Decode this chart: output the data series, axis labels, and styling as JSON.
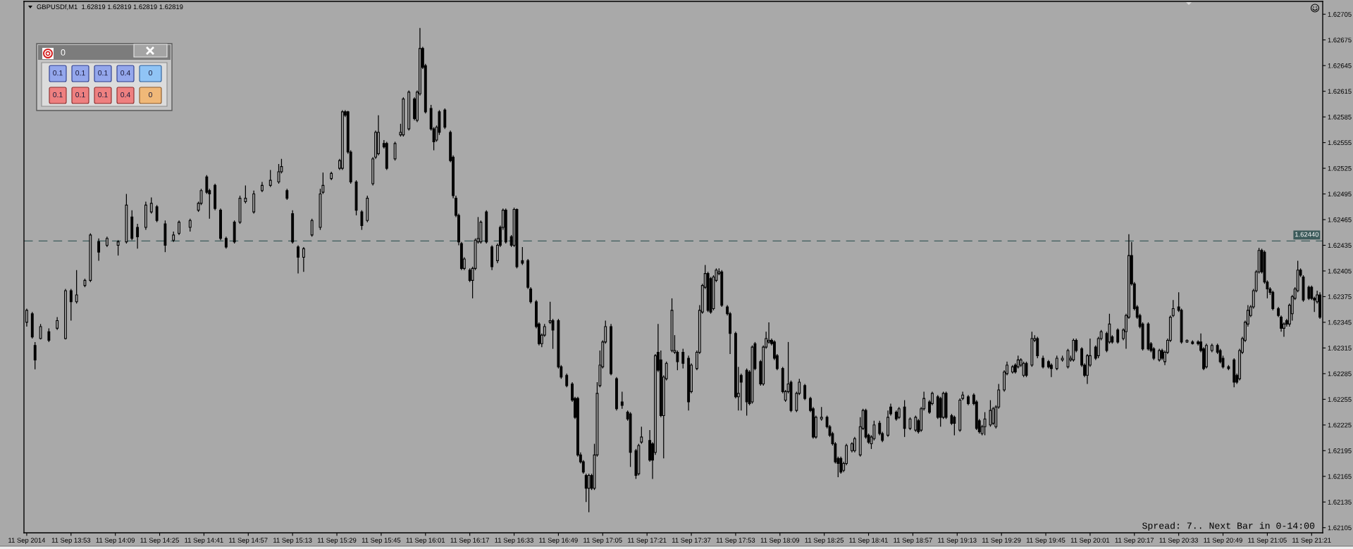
{
  "chart_data": {
    "type": "candlestick",
    "title": "GBPUSDf,M1  1.62819 1.62819 1.62819 1.62819",
    "color": "#000000",
    "x": [
      "2014-09-11T13:37",
      "2014-09-11T13:39",
      "2014-09-11T13:40",
      "2014-09-11T13:42",
      "2014-09-11T13:45",
      "2014-09-11T13:48",
      "2014-09-11T13:51",
      "2014-09-11T13:53",
      "2014-09-11T13:55",
      "2014-09-11T13:58",
      "2014-09-11T14:00",
      "2014-09-11T14:03",
      "2014-09-11T14:06",
      "2014-09-11T14:10",
      "2014-09-11T14:13",
      "2014-09-11T14:15",
      "2014-09-11T14:17",
      "2014-09-11T14:20",
      "2014-09-11T14:22",
      "2014-09-11T14:24",
      "2014-09-11T14:27",
      "2014-09-11T14:30",
      "2014-09-11T14:32",
      "2014-09-11T14:36",
      "2014-09-11T14:39",
      "2014-09-11T14:40",
      "2014-09-11T14:42",
      "2014-09-11T14:43",
      "2014-09-11T14:45",
      "2014-09-11T14:47",
      "2014-09-11T14:49",
      "2014-09-11T14:52",
      "2014-09-11T14:54",
      "2014-09-11T14:56",
      "2014-09-11T14:59",
      "2014-09-11T15:02",
      "2014-09-11T15:05",
      "2014-09-11T15:08",
      "2014-09-11T15:09",
      "2014-09-11T15:11",
      "2014-09-11T15:13",
      "2014-09-11T15:15",
      "2014-09-11T15:17",
      "2014-09-11T15:20",
      "2014-09-11T15:23",
      "2014-09-11T15:24",
      "2014-09-11T15:27",
      "2014-09-11T15:30",
      "2014-09-11T15:31",
      "2014-09-11T15:32",
      "2014-09-11T15:33",
      "2014-09-11T15:34",
      "2014-09-11T15:36",
      "2014-09-11T15:38",
      "2014-09-11T15:40",
      "2014-09-11T15:42",
      "2014-09-11T15:43",
      "2014-09-11T15:44",
      "2014-09-11T15:46",
      "2014-09-11T15:47",
      "2014-09-11T15:50",
      "2014-09-11T15:52",
      "2014-09-11T15:53",
      "2014-09-11T15:55",
      "2014-09-11T15:57",
      "2014-09-11T15:58",
      "2014-09-11T15:59",
      "2014-09-11T16:00",
      "2014-09-11T16:01",
      "2014-09-11T16:03",
      "2014-09-11T16:04",
      "2014-09-11T16:05",
      "2014-09-11T16:06",
      "2014-09-11T16:08",
      "2014-09-11T16:10",
      "2014-09-11T16:11",
      "2014-09-11T16:12",
      "2014-09-11T16:13",
      "2014-09-11T16:14",
      "2014-09-11T16:15",
      "2014-09-11T16:17",
      "2014-09-11T16:18",
      "2014-09-11T16:19",
      "2014-09-11T16:20",
      "2014-09-11T16:21",
      "2014-09-11T16:23",
      "2014-09-11T16:25",
      "2014-09-11T16:27",
      "2014-09-11T16:28",
      "2014-09-11T16:29",
      "2014-09-11T16:30",
      "2014-09-11T16:32",
      "2014-09-11T16:33",
      "2014-09-11T16:34",
      "2014-09-11T16:36",
      "2014-09-11T16:38",
      "2014-09-11T16:39",
      "2014-09-11T16:41",
      "2014-09-11T16:42",
      "2014-09-11T16:43",
      "2014-09-11T16:44",
      "2014-09-11T16:46",
      "2014-09-11T16:47",
      "2014-09-11T16:49",
      "2014-09-11T16:50",
      "2014-09-11T16:52",
      "2014-09-11T16:54",
      "2014-09-11T16:55",
      "2014-09-11T16:56",
      "2014-09-11T16:57",
      "2014-09-11T16:58",
      "2014-09-11T16:59",
      "2014-09-11T17:00",
      "2014-09-11T17:01",
      "2014-09-11T17:02",
      "2014-09-11T17:03",
      "2014-09-11T17:04",
      "2014-09-11T17:05",
      "2014-09-11T17:06",
      "2014-09-11T17:08",
      "2014-09-11T17:10",
      "2014-09-11T17:12",
      "2014-09-11T17:14",
      "2014-09-11T17:15",
      "2014-09-11T17:17",
      "2014-09-11T17:18",
      "2014-09-11T17:19",
      "2014-09-11T17:22",
      "2014-09-11T17:23",
      "2014-09-11T17:24",
      "2014-09-11T17:25",
      "2014-09-11T17:26",
      "2014-09-11T17:27",
      "2014-09-11T17:28",
      "2014-09-11T17:30",
      "2014-09-11T17:31",
      "2014-09-11T17:32",
      "2014-09-11T17:34",
      "2014-09-11T17:36",
      "2014-09-11T17:37",
      "2014-09-11T17:39",
      "2014-09-11T17:40",
      "2014-09-11T17:41",
      "2014-09-11T17:42",
      "2014-09-11T17:43",
      "2014-09-11T17:44",
      "2014-09-11T17:45",
      "2014-09-11T17:46",
      "2014-09-11T17:47",
      "2014-09-11T17:48",
      "2014-09-11T17:50",
      "2014-09-11T17:51",
      "2014-09-11T17:53",
      "2014-09-11T17:54",
      "2014-09-11T17:55",
      "2014-09-11T17:57",
      "2014-09-11T17:58",
      "2014-09-11T17:59",
      "2014-09-11T18:00",
      "2014-09-11T18:02",
      "2014-09-11T18:03",
      "2014-09-11T18:04",
      "2014-09-11T18:05",
      "2014-09-11T18:06",
      "2014-09-11T18:07",
      "2014-09-11T18:08",
      "2014-09-11T18:10",
      "2014-09-11T18:11",
      "2014-09-11T18:12",
      "2014-09-11T18:13",
      "2014-09-11T18:15",
      "2014-09-11T18:16",
      "2014-09-11T18:18",
      "2014-09-11T18:20",
      "2014-09-11T18:21",
      "2014-09-11T18:22",
      "2014-09-11T18:24",
      "2014-09-11T18:26",
      "2014-09-11T18:27",
      "2014-09-11T18:28",
      "2014-09-11T18:29",
      "2014-09-11T18:30",
      "2014-09-11T18:31",
      "2014-09-11T18:32",
      "2014-09-11T18:33",
      "2014-09-11T18:35",
      "2014-09-11T18:36",
      "2014-09-11T18:38",
      "2014-09-11T18:39",
      "2014-09-11T18:40",
      "2014-09-11T18:41",
      "2014-09-11T18:42",
      "2014-09-11T18:43",
      "2014-09-11T18:45",
      "2014-09-11T18:46",
      "2014-09-11T18:48",
      "2014-09-11T18:49",
      "2014-09-11T18:51",
      "2014-09-11T18:52",
      "2014-09-11T18:54",
      "2014-09-11T18:56",
      "2014-09-11T18:58",
      "2014-09-11T18:59",
      "2014-09-11T19:00",
      "2014-09-11T19:01",
      "2014-09-11T19:03",
      "2014-09-11T19:04",
      "2014-09-11T19:06",
      "2014-09-11T19:07",
      "2014-09-11T19:08",
      "2014-09-11T19:09",
      "2014-09-11T19:11",
      "2014-09-11T19:12",
      "2014-09-11T19:14",
      "2014-09-11T19:15",
      "2014-09-11T19:17",
      "2014-09-11T19:19",
      "2014-09-11T19:20",
      "2014-09-11T19:21",
      "2014-09-11T19:22",
      "2014-09-11T19:23",
      "2014-09-11T19:25",
      "2014-09-11T19:26",
      "2014-09-11T19:27",
      "2014-09-11T19:28",
      "2014-09-11T19:30",
      "2014-09-11T19:31",
      "2014-09-11T19:33",
      "2014-09-11T19:34",
      "2014-09-11T19:35",
      "2014-09-11T19:36",
      "2014-09-11T19:37",
      "2014-09-11T19:38",
      "2014-09-11T19:40",
      "2014-09-11T19:41",
      "2014-09-11T19:42",
      "2014-09-11T19:44",
      "2014-09-11T19:46",
      "2014-09-11T19:47",
      "2014-09-11T19:49",
      "2014-09-11T19:51",
      "2014-09-11T19:53",
      "2014-09-11T19:54",
      "2014-09-11T19:55",
      "2014-09-11T19:56",
      "2014-09-11T19:58",
      "2014-09-11T19:59",
      "2014-09-11T20:00",
      "2014-09-11T20:01",
      "2014-09-11T20:03",
      "2014-09-11T20:04",
      "2014-09-11T20:05",
      "2014-09-11T20:07",
      "2014-09-11T20:08",
      "2014-09-11T20:09",
      "2014-09-11T20:11",
      "2014-09-11T20:13",
      "2014-09-11T20:14",
      "2014-09-11T20:15",
      "2014-09-11T20:16",
      "2014-09-11T20:17",
      "2014-09-11T20:18",
      "2014-09-11T20:19",
      "2014-09-11T20:20",
      "2014-09-11T20:22",
      "2014-09-11T20:23",
      "2014-09-11T20:24",
      "2014-09-11T20:26",
      "2014-09-11T20:27",
      "2014-09-11T20:28",
      "2014-09-11T20:29",
      "2014-09-11T20:30",
      "2014-09-11T20:31",
      "2014-09-11T20:33",
      "2014-09-11T20:34",
      "2014-09-11T20:36",
      "2014-09-11T20:38",
      "2014-09-11T20:40",
      "2014-09-11T20:41",
      "2014-09-11T20:42",
      "2014-09-11T20:43",
      "2014-09-11T20:45",
      "2014-09-11T20:47",
      "2014-09-11T20:48",
      "2014-09-11T20:49",
      "2014-09-11T20:51",
      "2014-09-11T20:53",
      "2014-09-11T20:54",
      "2014-09-11T20:55",
      "2014-09-11T20:56",
      "2014-09-11T20:57",
      "2014-09-11T20:58",
      "2014-09-11T20:59",
      "2014-09-11T21:00",
      "2014-09-11T21:01",
      "2014-09-11T21:02",
      "2014-09-11T21:03",
      "2014-09-11T21:04",
      "2014-09-11T21:05",
      "2014-09-11T21:06",
      "2014-09-11T21:07",
      "2014-09-11T21:09",
      "2014-09-11T21:10",
      "2014-09-11T21:11",
      "2014-09-11T21:12",
      "2014-09-11T21:13",
      "2014-09-11T21:14",
      "2014-09-11T21:15",
      "2014-09-11T21:16",
      "2014-09-11T21:17",
      "2014-09-11T21:18",
      "2014-09-11T21:20",
      "2014-09-11T21:21",
      "2014-09-11T21:22",
      "2014-09-11T21:23",
      "2014-09-11T21:24"
    ],
    "ohlc": [
      [
        1.62345,
        1.62361,
        1.6234,
        1.62359
      ],
      [
        1.62355,
        1.62357,
        1.62326,
        1.62328
      ],
      [
        1.62318,
        1.62322,
        1.6229,
        1.62301
      ],
      [
        1.62326,
        1.62343,
        1.62325,
        1.6234
      ],
      [
        1.62334,
        1.62338,
        1.62322,
        1.62324
      ],
      [
        1.62338,
        1.62351,
        1.62336,
        1.62347
      ],
      [
        1.62326,
        1.62384,
        1.62325,
        1.62382
      ],
      [
        1.62382,
        1.62384,
        1.62347,
        1.62369
      ],
      [
        1.62369,
        1.62406,
        1.62367,
        1.62377
      ],
      [
        1.62388,
        1.62396,
        1.62386,
        1.62394
      ],
      [
        1.62394,
        1.62449,
        1.62392,
        1.62447
      ],
      [
        1.62439,
        1.62443,
        1.62417,
        1.62427
      ],
      [
        1.62435,
        1.62445,
        1.62433,
        1.62443
      ],
      [
        1.62435,
        1.62441,
        1.62423,
        1.62439
      ],
      [
        1.62439,
        1.62495,
        1.62437,
        1.62482
      ],
      [
        1.62468,
        1.62476,
        1.62441,
        1.62443
      ],
      [
        1.62456,
        1.6246,
        1.62431,
        1.62445
      ],
      [
        1.62456,
        1.62486,
        1.62453,
        1.62482
      ],
      [
        1.62474,
        1.62491,
        1.62472,
        1.62484
      ],
      [
        1.6248,
        1.62482,
        1.62462,
        1.62464
      ],
      [
        1.6246,
        1.62464,
        1.62427,
        1.62435
      ],
      [
        1.62441,
        1.62451,
        1.62439,
        1.62447
      ],
      [
        1.62449,
        1.62464,
        1.62447,
        1.62462
      ],
      [
        1.62456,
        1.62466,
        1.62451,
        1.62464
      ],
      [
        1.62476,
        1.62486,
        1.62474,
        1.62484
      ],
      [
        1.62484,
        1.62501,
        1.62482,
        1.62499
      ],
      [
        1.62515,
        1.62517,
        1.62495,
        1.62497
      ],
      [
        1.62499,
        1.62501,
        1.62466,
        1.62495
      ],
      [
        1.62505,
        1.62507,
        1.62476,
        1.62478
      ],
      [
        1.62476,
        1.62478,
        1.62441,
        1.62443
      ],
      [
        1.62443,
        1.62445,
        1.62431,
        1.62433
      ],
      [
        1.62462,
        1.62464,
        1.62437,
        1.62439
      ],
      [
        1.62462,
        1.62493,
        1.6246,
        1.6249
      ],
      [
        1.62486,
        1.62505,
        1.62484,
        1.6249
      ],
      [
        1.62474,
        1.62499,
        1.62472,
        1.62495
      ],
      [
        1.62499,
        1.62509,
        1.62497,
        1.62505
      ],
      [
        1.62505,
        1.62523,
        1.62503,
        1.62511
      ],
      [
        1.62509,
        1.6253,
        1.62507,
        1.62521
      ],
      [
        1.62521,
        1.62536,
        1.62519,
        1.62527
      ],
      [
        1.62499,
        1.62501,
        1.62488,
        1.6249
      ],
      [
        1.62472,
        1.62476,
        1.62437,
        1.62439
      ],
      [
        1.62433,
        1.62435,
        1.62402,
        1.62421
      ],
      [
        1.62421,
        1.62433,
        1.62404,
        1.62431
      ],
      [
        1.62447,
        1.62466,
        1.62445,
        1.62464
      ],
      [
        1.62456,
        1.62501,
        1.62453,
        1.62495
      ],
      [
        1.62497,
        1.6252,
        1.62495,
        1.62505
      ],
      [
        1.62513,
        1.62521,
        1.62511,
        1.62519
      ],
      [
        1.62525,
        1.62536,
        1.62523,
        1.62534
      ],
      [
        1.62525,
        1.62593,
        1.62523,
        1.62591
      ],
      [
        1.62591,
        1.62593,
        1.62585,
        1.62587
      ],
      [
        1.62591,
        1.62592,
        1.62542,
        1.62544
      ],
      [
        1.62544,
        1.62546,
        1.62507,
        1.62509
      ],
      [
        1.62509,
        1.62511,
        1.6247,
        1.62476
      ],
      [
        1.62474,
        1.62476,
        1.62453,
        1.62458
      ],
      [
        1.62464,
        1.62493,
        1.62462,
        1.6249
      ],
      [
        1.62507,
        1.62538,
        1.62505,
        1.62536
      ],
      [
        1.62538,
        1.62569,
        1.62536,
        1.62567
      ],
      [
        1.62542,
        1.62587,
        1.6254,
        1.62567
      ],
      [
        1.62554,
        1.62558,
        1.62548,
        1.6255
      ],
      [
        1.62554,
        1.62556,
        1.62523,
        1.62525
      ],
      [
        1.62536,
        1.62556,
        1.62534,
        1.62554
      ],
      [
        1.62564,
        1.62577,
        1.62562,
        1.62567
      ],
      [
        1.62564,
        1.62608,
        1.62562,
        1.62606
      ],
      [
        1.62571,
        1.62616,
        1.62569,
        1.62614
      ],
      [
        1.62606,
        1.62608,
        1.62581,
        1.62583
      ],
      [
        1.62581,
        1.62616,
        1.62579,
        1.62614
      ],
      [
        1.62612,
        1.62689,
        1.6261,
        1.62665
      ],
      [
        1.62665,
        1.62667,
        1.62641,
        1.62643
      ],
      [
        1.62645,
        1.62647,
        1.62589,
        1.62591
      ],
      [
        1.62595,
        1.62599,
        1.62569,
        1.62571
      ],
      [
        1.62571,
        1.62573,
        1.62546,
        1.62556
      ],
      [
        1.62558,
        1.62575,
        1.62556,
        1.62573
      ],
      [
        1.62591,
        1.62593,
        1.62564,
        1.62567
      ],
      [
        1.62593,
        1.62595,
        1.62571,
        1.62573
      ],
      [
        1.62567,
        1.62569,
        1.62532,
        1.62534
      ],
      [
        1.62538,
        1.6254,
        1.6249,
        1.62493
      ],
      [
        1.6249,
        1.62493,
        1.62468,
        1.6247
      ],
      [
        1.6247,
        1.62472,
        1.62435,
        1.62439
      ],
      [
        1.62437,
        1.62439,
        1.62406,
        1.62408
      ],
      [
        1.62408,
        1.62421,
        1.62406,
        1.62419
      ],
      [
        1.62406,
        1.62408,
        1.62392,
        1.62394
      ],
      [
        1.62394,
        1.6241,
        1.62373,
        1.62408
      ],
      [
        1.62408,
        1.62443,
        1.62406,
        1.62441
      ],
      [
        1.62439,
        1.62468,
        1.62437,
        1.62443
      ],
      [
        1.62439,
        1.62464,
        1.62437,
        1.62462
      ],
      [
        1.62474,
        1.62476,
        1.62437,
        1.62439
      ],
      [
        1.62433,
        1.62435,
        1.62406,
        1.6241
      ],
      [
        1.62417,
        1.62437,
        1.62414,
        1.62435
      ],
      [
        1.62456,
        1.62458,
        1.62433,
        1.62435
      ],
      [
        1.62456,
        1.62478,
        1.62453,
        1.62476
      ],
      [
        1.62476,
        1.62478,
        1.62437,
        1.62439
      ],
      [
        1.62445,
        1.62447,
        1.62433,
        1.62435
      ],
      [
        1.62435,
        1.62479,
        1.62433,
        1.62477
      ],
      [
        1.62477,
        1.62478,
        1.62408,
        1.6241
      ],
      [
        1.62417,
        1.62433,
        1.62412,
        1.62414
      ],
      [
        1.62417,
        1.62419,
        1.62384,
        1.62386
      ],
      [
        1.62384,
        1.62386,
        1.62367,
        1.62369
      ],
      [
        1.62369,
        1.62371,
        1.62338,
        1.6234
      ],
      [
        1.62343,
        1.62345,
        1.62318,
        1.6232
      ],
      [
        1.6232,
        1.62332,
        1.62316,
        1.6233
      ],
      [
        1.6233,
        1.62343,
        1.62328,
        1.6234
      ],
      [
        1.62345,
        1.62369,
        1.62343,
        1.62347
      ],
      [
        1.62347,
        1.62349,
        1.62314,
        1.62336
      ],
      [
        1.62347,
        1.62349,
        1.62291,
        1.62293
      ],
      [
        1.62293,
        1.62295,
        1.62279,
        1.62281
      ],
      [
        1.62283,
        1.62285,
        1.62269,
        1.62271
      ],
      [
        1.62273,
        1.62275,
        1.62252,
        1.62254
      ],
      [
        1.62256,
        1.62258,
        1.62232,
        1.62234
      ],
      [
        1.62256,
        1.62258,
        1.62188,
        1.6219
      ],
      [
        1.6219,
        1.62193,
        1.6218,
        1.62182
      ],
      [
        1.62182,
        1.62184,
        1.62168,
        1.6217
      ],
      [
        1.62166,
        1.62168,
        1.62135,
        1.62151
      ],
      [
        1.62151,
        1.62168,
        1.62123,
        1.62166
      ],
      [
        1.62166,
        1.62168,
        1.62149,
        1.62151
      ],
      [
        1.62151,
        1.62203,
        1.62149,
        1.6219
      ],
      [
        1.6219,
        1.62275,
        1.62188,
        1.62262
      ],
      [
        1.62271,
        1.62312,
        1.62269,
        1.62295
      ],
      [
        1.62293,
        1.62324,
        1.62291,
        1.62322
      ],
      [
        1.62322,
        1.62347,
        1.6232,
        1.6234
      ],
      [
        1.6234,
        1.62343,
        1.62283,
        1.62285
      ],
      [
        1.62279,
        1.62281,
        1.62242,
        1.62244
      ],
      [
        1.62252,
        1.62264,
        1.62244,
        1.62248
      ],
      [
        1.6224,
        1.62242,
        1.6223,
        1.62232
      ],
      [
        1.62238,
        1.6224,
        1.62176,
        1.62193
      ],
      [
        1.62195,
        1.62197,
        1.62162,
        1.62166
      ],
      [
        1.62168,
        1.62203,
        1.62166,
        1.62201
      ],
      [
        1.62205,
        1.62223,
        1.62203,
        1.62211
      ],
      [
        1.62207,
        1.62219,
        1.62182,
        1.62184
      ],
      [
        1.62203,
        1.62205,
        1.62162,
        1.62184
      ],
      [
        1.62193,
        1.62308,
        1.6219,
        1.62306
      ],
      [
        1.6231,
        1.62343,
        1.62287,
        1.62289
      ],
      [
        1.62301,
        1.62312,
        1.62234,
        1.62236
      ],
      [
        1.62236,
        1.62283,
        1.62186,
        1.62281
      ],
      [
        1.62279,
        1.62299,
        1.62277,
        1.62297
      ],
      [
        1.62312,
        1.62373,
        1.6231,
        1.62359
      ],
      [
        1.6231,
        1.6233,
        1.62308,
        1.62312
      ],
      [
        1.6231,
        1.62312,
        1.62289,
        1.62299
      ],
      [
        1.6231,
        1.62314,
        1.62291,
        1.62297
      ],
      [
        1.62303,
        1.62306,
        1.62242,
        1.62252
      ],
      [
        1.62264,
        1.62297,
        1.62262,
        1.62295
      ],
      [
        1.62291,
        1.62312,
        1.62289,
        1.6231
      ],
      [
        1.6231,
        1.62365,
        1.62308,
        1.62359
      ],
      [
        1.62357,
        1.6239,
        1.62355,
        1.62388
      ],
      [
        1.62386,
        1.62412,
        1.62384,
        1.62402
      ],
      [
        1.62402,
        1.62404,
        1.62357,
        1.62359
      ],
      [
        1.62396,
        1.62398,
        1.62355,
        1.62357
      ],
      [
        1.62361,
        1.624,
        1.62359,
        1.62398
      ],
      [
        1.62394,
        1.62408,
        1.62392,
        1.62406
      ],
      [
        1.62402,
        1.62408,
        1.624,
        1.62404
      ],
      [
        1.62404,
        1.62406,
        1.62363,
        1.62365
      ],
      [
        1.62363,
        1.62365,
        1.62353,
        1.62355
      ],
      [
        1.62355,
        1.62357,
        1.62308,
        1.62332
      ],
      [
        1.62332,
        1.62334,
        1.62256,
        1.62258
      ],
      [
        1.62258,
        1.62293,
        1.62242,
        1.62262
      ],
      [
        1.62283,
        1.62285,
        1.62242,
        1.62275
      ],
      [
        1.62289,
        1.62291,
        1.62236,
        1.62252
      ],
      [
        1.62287,
        1.62289,
        1.62248,
        1.6225
      ],
      [
        1.62252,
        1.62318,
        1.6225,
        1.62316
      ],
      [
        1.6232,
        1.62322,
        1.62289,
        1.62291
      ],
      [
        1.62299,
        1.62301,
        1.62271,
        1.62273
      ],
      [
        1.62273,
        1.62318,
        1.62271,
        1.62316
      ],
      [
        1.62316,
        1.62334,
        1.62314,
        1.62326
      ],
      [
        1.62322,
        1.62345,
        1.6232,
        1.62324
      ],
      [
        1.62324,
        1.62326,
        1.62318,
        1.6232
      ],
      [
        1.62322,
        1.62324,
        1.62301,
        1.62303
      ],
      [
        1.62306,
        1.62308,
        1.62289,
        1.62291
      ],
      [
        1.62291,
        1.62293,
        1.62262,
        1.62264
      ],
      [
        1.62254,
        1.62266,
        1.62252,
        1.62264
      ],
      [
        1.62264,
        1.62322,
        1.62262,
        1.62273
      ],
      [
        1.62275,
        1.62277,
        1.6224,
        1.62242
      ],
      [
        1.62242,
        1.62264,
        1.6224,
        1.62262
      ],
      [
        1.62262,
        1.62279,
        1.6226,
        1.62275
      ],
      [
        1.62271,
        1.62273,
        1.62254,
        1.62256
      ],
      [
        1.62256,
        1.62258,
        1.6224,
        1.62242
      ],
      [
        1.62244,
        1.62246,
        1.62209,
        1.62211
      ],
      [
        1.62211,
        1.62236,
        1.62209,
        1.62234
      ],
      [
        1.62232,
        1.62246,
        1.6223,
        1.62234
      ],
      [
        1.62234,
        1.62236,
        1.62221,
        1.62223
      ],
      [
        1.62223,
        1.62225,
        1.62211,
        1.62213
      ],
      [
        1.62215,
        1.62217,
        1.62201,
        1.62203
      ],
      [
        1.62203,
        1.62205,
        1.6218,
        1.62182
      ],
      [
        1.62186,
        1.62188,
        1.62164,
        1.6218
      ],
      [
        1.62186,
        1.62188,
        1.62168,
        1.6217
      ],
      [
        1.62172,
        1.62182,
        1.6217,
        1.6218
      ],
      [
        1.6218,
        1.62203,
        1.62178,
        1.62201
      ],
      [
        1.62195,
        1.62205,
        1.62193,
        1.62203
      ],
      [
        1.62195,
        1.62211,
        1.62193,
        1.62209
      ],
      [
        1.6219,
        1.62234,
        1.62188,
        1.62223
      ],
      [
        1.62221,
        1.62244,
        1.62219,
        1.62242
      ],
      [
        1.62242,
        1.62244,
        1.62209,
        1.62211
      ],
      [
        1.62213,
        1.62215,
        1.62203,
        1.62205
      ],
      [
        1.62203,
        1.62213,
        1.62197,
        1.62211
      ],
      [
        1.62209,
        1.6223,
        1.62207,
        1.62225
      ],
      [
        1.62227,
        1.6223,
        1.62213,
        1.62215
      ],
      [
        1.62215,
        1.62217,
        1.62205,
        1.62207
      ],
      [
        1.62213,
        1.62242,
        1.62211,
        1.62234
      ],
      [
        1.62246,
        1.6225,
        1.62236,
        1.62238
      ],
      [
        1.6224,
        1.62242,
        1.6223,
        1.62232
      ],
      [
        1.62234,
        1.62246,
        1.62232,
        1.62244
      ],
      [
        1.62246,
        1.62254,
        1.62211,
        1.62221
      ],
      [
        1.62221,
        1.62234,
        1.62219,
        1.62232
      ],
      [
        1.62219,
        1.62236,
        1.62217,
        1.62234
      ],
      [
        1.6223,
        1.62232,
        1.62215,
        1.62217
      ],
      [
        1.62219,
        1.62246,
        1.62217,
        1.62244
      ],
      [
        1.62244,
        1.62264,
        1.62242,
        1.62256
      ],
      [
        1.62252,
        1.62254,
        1.62238,
        1.6224
      ],
      [
        1.6225,
        1.62264,
        1.62248,
        1.62262
      ],
      [
        1.62258,
        1.6226,
        1.62232,
        1.62234
      ],
      [
        1.62256,
        1.62258,
        1.62223,
        1.62234
      ],
      [
        1.62234,
        1.62264,
        1.62232,
        1.62262
      ],
      [
        1.62262,
        1.62264,
        1.62232,
        1.62234
      ],
      [
        1.62236,
        1.62238,
        1.62225,
        1.62227
      ],
      [
        1.62234,
        1.62236,
        1.62213,
        1.62227
      ],
      [
        1.62219,
        1.62256,
        1.62217,
        1.62254
      ],
      [
        1.62256,
        1.62264,
        1.62254,
        1.6226
      ],
      [
        1.62258,
        1.6226,
        1.62248,
        1.6225
      ],
      [
        1.6226,
        1.62262,
        1.62248,
        1.6225
      ],
      [
        1.62252,
        1.62254,
        1.62219,
        1.62221
      ],
      [
        1.6223,
        1.62232,
        1.62215,
        1.62217
      ],
      [
        1.62215,
        1.62225,
        1.62213,
        1.62223
      ],
      [
        1.62223,
        1.6224,
        1.62213,
        1.62232
      ],
      [
        1.62225,
        1.62254,
        1.62223,
        1.62242
      ],
      [
        1.62227,
        1.62246,
        1.62225,
        1.62244
      ],
      [
        1.62223,
        1.62248,
        1.62221,
        1.62246
      ],
      [
        1.62246,
        1.62273,
        1.62244,
        1.62266
      ],
      [
        1.62266,
        1.62289,
        1.62264,
        1.62287
      ],
      [
        1.62285,
        1.62299,
        1.62283,
        1.62295
      ],
      [
        1.62287,
        1.62295,
        1.62285,
        1.62293
      ],
      [
        1.62295,
        1.62297,
        1.62285,
        1.62287
      ],
      [
        1.62293,
        1.62306,
        1.62291,
        1.62301
      ],
      [
        1.62295,
        1.62303,
        1.62293,
        1.62301
      ],
      [
        1.62283,
        1.62299,
        1.62281,
        1.62297
      ],
      [
        1.62297,
        1.62299,
        1.62281,
        1.62283
      ],
      [
        1.62295,
        1.62334,
        1.62293,
        1.62326
      ],
      [
        1.62324,
        1.6233,
        1.62322,
        1.62326
      ],
      [
        1.62326,
        1.62328,
        1.62303,
        1.62306
      ],
      [
        1.62303,
        1.62306,
        1.62291,
        1.62293
      ],
      [
        1.62299,
        1.62301,
        1.62291,
        1.62293
      ],
      [
        1.62295,
        1.62297,
        1.62281,
        1.62291
      ],
      [
        1.62291,
        1.62306,
        1.62289,
        1.62303
      ],
      [
        1.62301,
        1.62306,
        1.62299,
        1.62303
      ],
      [
        1.62293,
        1.62314,
        1.62291,
        1.62312
      ],
      [
        1.62301,
        1.62306,
        1.62299,
        1.62303
      ],
      [
        1.62301,
        1.62326,
        1.62299,
        1.62324
      ],
      [
        1.62324,
        1.62326,
        1.6231,
        1.62312
      ],
      [
        1.62314,
        1.62316,
        1.62293,
        1.62295
      ],
      [
        1.62295,
        1.62297,
        1.62281,
        1.62283
      ],
      [
        1.62283,
        1.62308,
        1.62273,
        1.62306
      ],
      [
        1.62295,
        1.62326,
        1.62293,
        1.62306
      ],
      [
        1.62316,
        1.62318,
        1.62301,
        1.62303
      ],
      [
        1.62306,
        1.62328,
        1.62303,
        1.62326
      ],
      [
        1.62326,
        1.62336,
        1.62324,
        1.62334
      ],
      [
        1.62332,
        1.62334,
        1.6231,
        1.62312
      ],
      [
        1.62322,
        1.62355,
        1.6232,
        1.62343
      ],
      [
        1.62328,
        1.6233,
        1.6232,
        1.62322
      ],
      [
        1.62336,
        1.62338,
        1.6232,
        1.62322
      ],
      [
        1.62326,
        1.62338,
        1.62324,
        1.62336
      ],
      [
        1.62334,
        1.62355,
        1.62314,
        1.62353
      ],
      [
        1.62351,
        1.62448,
        1.62349,
        1.62423
      ],
      [
        1.62423,
        1.62439,
        1.62388,
        1.6239
      ],
      [
        1.6239,
        1.62392,
        1.62359,
        1.62361
      ],
      [
        1.62363,
        1.62365,
        1.62349,
        1.62351
      ],
      [
        1.62353,
        1.62355,
        1.62338,
        1.6234
      ],
      [
        1.62343,
        1.62345,
        1.62312,
        1.62314
      ],
      [
        1.62343,
        1.62345,
        1.62312,
        1.62314
      ],
      [
        1.6232,
        1.62322,
        1.6231,
        1.62312
      ],
      [
        1.62314,
        1.62316,
        1.62301,
        1.62303
      ],
      [
        1.62301,
        1.62314,
        1.62299,
        1.62312
      ],
      [
        1.62312,
        1.62314,
        1.62301,
        1.62303
      ],
      [
        1.62299,
        1.62312,
        1.62295,
        1.6231
      ],
      [
        1.6231,
        1.62326,
        1.62308,
        1.62324
      ],
      [
        1.62324,
        1.62353,
        1.62322,
        1.62351
      ],
      [
        1.62353,
        1.62371,
        1.62351,
        1.62361
      ],
      [
        1.62363,
        1.6238,
        1.62357,
        1.62359
      ],
      [
        1.62359,
        1.62361,
        1.6232,
        1.62322
      ],
      [
        1.62322,
        1.62325,
        1.62321,
        1.62324
      ],
      [
        1.62322,
        1.62324,
        1.62319,
        1.6232
      ],
      [
        1.62322,
        1.62324,
        1.62318,
        1.6232
      ],
      [
        1.62322,
        1.62332,
        1.6231,
        1.62312
      ],
      [
        1.62314,
        1.62316,
        1.62289,
        1.62291
      ],
      [
        1.62293,
        1.6232,
        1.62291,
        1.62318
      ],
      [
        1.62312,
        1.6232,
        1.6231,
        1.62318
      ],
      [
        1.62318,
        1.6232,
        1.62308,
        1.6231
      ],
      [
        1.62312,
        1.62314,
        1.62297,
        1.62299
      ],
      [
        1.62303,
        1.62306,
        1.62291,
        1.62293
      ],
      [
        1.62293,
        1.62295,
        1.62289,
        1.62291
      ],
      [
        1.62301,
        1.62303,
        1.62269,
        1.62275
      ],
      [
        1.62283,
        1.62285,
        1.62273,
        1.62275
      ],
      [
        1.62279,
        1.62314,
        1.62277,
        1.62312
      ],
      [
        1.6231,
        1.62328,
        1.62308,
        1.62326
      ],
      [
        1.62324,
        1.62347,
        1.62322,
        1.62345
      ],
      [
        1.62343,
        1.62365,
        1.6234,
        1.62359
      ],
      [
        1.62353,
        1.62365,
        1.62351,
        1.62363
      ],
      [
        1.62363,
        1.62384,
        1.62361,
        1.62382
      ],
      [
        1.62382,
        1.62406,
        1.6238,
        1.62404
      ],
      [
        1.62404,
        1.62432,
        1.62402,
        1.62429
      ],
      [
        1.62429,
        1.62431,
        1.62402,
        1.62404
      ],
      [
        1.62427,
        1.62429,
        1.6239,
        1.62392
      ],
      [
        1.62392,
        1.62394,
        1.62373,
        1.62384
      ],
      [
        1.62384,
        1.62386,
        1.62377,
        1.6238
      ],
      [
        1.6238,
        1.62382,
        1.62359,
        1.62361
      ],
      [
        1.62361,
        1.62363,
        1.62351,
        1.62353
      ],
      [
        1.62351,
        1.62353,
        1.62334,
        1.62338
      ],
      [
        1.62338,
        1.62345,
        1.62328,
        1.62343
      ],
      [
        1.62347,
        1.62349,
        1.6234,
        1.62343
      ],
      [
        1.62343,
        1.62367,
        1.6234,
        1.62365
      ],
      [
        1.62355,
        1.62377,
        1.62347,
        1.62375
      ],
      [
        1.62373,
        1.62386,
        1.62371,
        1.62384
      ],
      [
        1.62382,
        1.62417,
        1.6238,
        1.62406
      ],
      [
        1.62406,
        1.62408,
        1.62398,
        1.624
      ],
      [
        1.62398,
        1.624,
        1.62369,
        1.62371
      ],
      [
        1.62386,
        1.62388,
        1.62371,
        1.62373
      ],
      [
        1.62386,
        1.62388,
        1.62371,
        1.62373
      ],
      [
        1.62373,
        1.62375,
        1.62357,
        1.62371
      ],
      [
        1.62369,
        1.62382,
        1.62367,
        1.62377
      ],
      [
        1.62377,
        1.6238,
        1.62349,
        1.62351
      ]
    ],
    "xlim": [
      "2014-09-11T13:36",
      "2014-09-11T21:25"
    ],
    "ylim": [
      1.62099,
      1.6272
    ],
    "xticks": [
      {
        "value": "2014-09-11T13:37",
        "label": "11 Sep 2014"
      },
      {
        "value": "2014-09-11T13:53",
        "label": "11 Sep 13:53"
      },
      {
        "value": "2014-09-11T14:09",
        "label": "11 Sep 14:09"
      },
      {
        "value": "2014-09-11T14:25",
        "label": "11 Sep 14:25"
      },
      {
        "value": "2014-09-11T14:41",
        "label": "11 Sep 14:41"
      },
      {
        "value": "2014-09-11T14:57",
        "label": "11 Sep 14:57"
      },
      {
        "value": "2014-09-11T15:13",
        "label": "11 Sep 15:13"
      },
      {
        "value": "2014-09-11T15:29",
        "label": "11 Sep 15:29"
      },
      {
        "value": "2014-09-11T15:45",
        "label": "11 Sep 15:45"
      },
      {
        "value": "2014-09-11T16:01",
        "label": "11 Sep 16:01"
      },
      {
        "value": "2014-09-11T16:17",
        "label": "11 Sep 16:17"
      },
      {
        "value": "2014-09-11T16:33",
        "label": "11 Sep 16:33"
      },
      {
        "value": "2014-09-11T16:49",
        "label": "11 Sep 16:49"
      },
      {
        "value": "2014-09-11T17:05",
        "label": "11 Sep 17:05"
      },
      {
        "value": "2014-09-11T17:21",
        "label": "11 Sep 17:21"
      },
      {
        "value": "2014-09-11T17:37",
        "label": "11 Sep 17:37"
      },
      {
        "value": "2014-09-11T17:53",
        "label": "11 Sep 17:53"
      },
      {
        "value": "2014-09-11T18:09",
        "label": "11 Sep 18:09"
      },
      {
        "value": "2014-09-11T18:25",
        "label": "11 Sep 18:25"
      },
      {
        "value": "2014-09-11T18:41",
        "label": "11 Sep 18:41"
      },
      {
        "value": "2014-09-11T18:57",
        "label": "11 Sep 18:57"
      },
      {
        "value": "2014-09-11T19:13",
        "label": "11 Sep 19:13"
      },
      {
        "value": "2014-09-11T19:29",
        "label": "11 Sep 19:29"
      },
      {
        "value": "2014-09-11T19:45",
        "label": "11 Sep 19:45"
      },
      {
        "value": "2014-09-11T20:01",
        "label": "11 Sep 20:01"
      },
      {
        "value": "2014-09-11T20:17",
        "label": "11 Sep 20:17"
      },
      {
        "value": "2014-09-11T20:33",
        "label": "11 Sep 20:33"
      },
      {
        "value": "2014-09-11T20:49",
        "label": "11 Sep 20:49"
      },
      {
        "value": "2014-09-11T21:05",
        "label": "11 Sep 21:05"
      },
      {
        "value": "2014-09-11T21:21",
        "label": "11 Sep 21:21"
      }
    ],
    "yticks": [
      1.62705,
      1.62675,
      1.62645,
      1.62615,
      1.62585,
      1.62555,
      1.62525,
      1.62495,
      1.62465,
      1.62435,
      1.62405,
      1.62375,
      1.62345,
      1.62315,
      1.62285,
      1.62255,
      1.62225,
      1.62195,
      1.62165,
      1.62135,
      1.62105
    ],
    "ref_lines": [
      {
        "axis": "y",
        "value": 1.6244,
        "label": "1.62440",
        "color": "#3d5b5b",
        "line_style": "dashed"
      }
    ],
    "annotations": [
      "0",
      "0.1",
      "0.1",
      "0.1",
      "0.4",
      "0",
      "0.1",
      "0.1",
      "0.1",
      "0.4",
      "0",
      "Spread: 7.. Next Bar in 0-14:00"
    ]
  }
}
